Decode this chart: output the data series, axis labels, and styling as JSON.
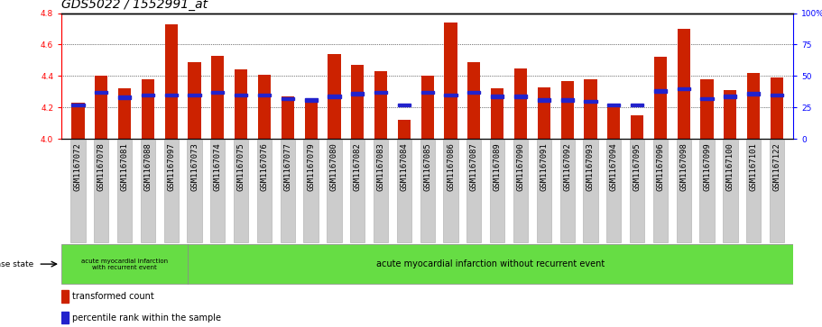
{
  "title": "GDS5022 / 1552991_at",
  "samples": [
    "GSM1167072",
    "GSM1167078",
    "GSM1167081",
    "GSM1167088",
    "GSM1167097",
    "GSM1167073",
    "GSM1167074",
    "GSM1167075",
    "GSM1167076",
    "GSM1167077",
    "GSM1167079",
    "GSM1167080",
    "GSM1167082",
    "GSM1167083",
    "GSM1167084",
    "GSM1167085",
    "GSM1167086",
    "GSM1167087",
    "GSM1167089",
    "GSM1167090",
    "GSM1167091",
    "GSM1167092",
    "GSM1167093",
    "GSM1167094",
    "GSM1167095",
    "GSM1167096",
    "GSM1167098",
    "GSM1167099",
    "GSM1167100",
    "GSM1167101",
    "GSM1167122"
  ],
  "bar_heights": [
    4.23,
    4.4,
    4.32,
    4.38,
    4.73,
    4.49,
    4.53,
    4.44,
    4.41,
    4.27,
    4.24,
    4.54,
    4.47,
    4.43,
    4.12,
    4.4,
    4.74,
    4.49,
    4.32,
    4.45,
    4.33,
    4.37,
    4.38,
    4.2,
    4.15,
    4.52,
    4.7,
    4.38,
    4.31,
    4.42,
    4.39
  ],
  "percentile_ranks": [
    27,
    37,
    33,
    35,
    35,
    35,
    37,
    35,
    35,
    32,
    31,
    34,
    36,
    37,
    27,
    37,
    35,
    37,
    34,
    34,
    31,
    31,
    30,
    27,
    27,
    38,
    40,
    32,
    34,
    36,
    35
  ],
  "ylim_left": [
    4.0,
    4.8
  ],
  "ylim_right": [
    0,
    100
  ],
  "yticks_left": [
    4.0,
    4.2,
    4.4,
    4.6,
    4.8
  ],
  "yticks_right": [
    0,
    25,
    50,
    75,
    100
  ],
  "bar_color": "#cc2200",
  "marker_color": "#2222cc",
  "group1_count": 5,
  "group1_label": "acute myocardial infarction\nwith recurrent event",
  "group2_label": "acute myocardial infarction without recurrent event",
  "disease_state_label": "disease state",
  "legend1": "transformed count",
  "legend2": "percentile rank within the sample",
  "group_bg_color": "#66dd44",
  "xtick_bg_color": "#cccccc",
  "title_fontsize": 10,
  "tick_fontsize": 6.5,
  "label_fontsize": 7,
  "grid_yticks": [
    4.2,
    4.4,
    4.6
  ],
  "bar_width": 0.55
}
